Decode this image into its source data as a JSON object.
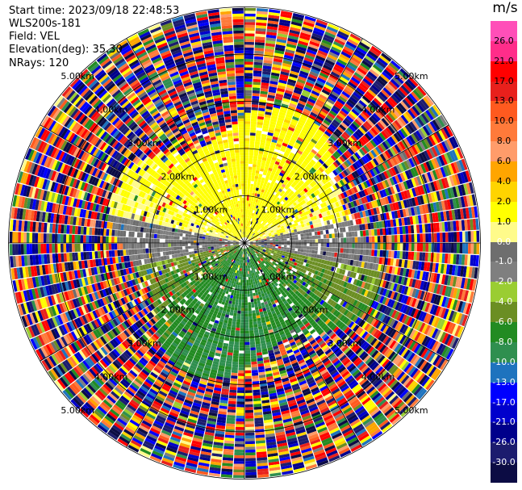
{
  "header": {
    "start_time": "Start time: 2023/09/18 22:48:53",
    "instrument": "WLS200s-181",
    "field": "Field: VEL",
    "elevation": "Elevation(deg): 35.30",
    "nrays": "NRays: 120"
  },
  "colorbar": {
    "unit": "m/s",
    "ticks": [
      "26.0",
      "21.0",
      "17.0",
      "13.0",
      "10.0",
      "8.0",
      "6.0",
      "4.0",
      "2.0",
      "1.0",
      "0.0",
      "-1.0",
      "-2.0",
      "-4.0",
      "-6.0",
      "-8.0",
      "-10.0",
      "-13.0",
      "-17.0",
      "-21.0",
      "-26.0",
      "-30.0"
    ],
    "colors": [
      "#ff4fb8",
      "#ff2d8a",
      "#ff0000",
      "#e8201c",
      "#ff5a1f",
      "#ff7a3a",
      "#ff9c6a",
      "#ffa500",
      "#ffd400",
      "#ffff00",
      "#fffb8a",
      "#6e6e6e",
      "#7f7f7f",
      "#9acd32",
      "#6b8e23",
      "#228b22",
      "#2f8f4f",
      "#1e73be",
      "#0000ff",
      "#0000cc",
      "#00008b",
      "#1c1c6e",
      "#0c0c44"
    ]
  },
  "chart_data": {
    "type": "heatmap",
    "title": "",
    "field": "VEL",
    "units": "m/s",
    "projection": "polar PPI",
    "n_rays": 120,
    "elevation_deg": 35.3,
    "range_max_km": 5.0,
    "range_rings_km": [
      1.0,
      2.0,
      3.0,
      4.0,
      5.0
    ],
    "range_ring_labels": [
      "1.00km",
      "2.00km",
      "3.00km",
      "4.00km",
      "5.00km"
    ],
    "color_scale": {
      "boundaries": [
        -30,
        -26,
        -21,
        -17,
        -13,
        -10,
        -8,
        -6,
        -4,
        -2,
        -1,
        0,
        1,
        2,
        4,
        6,
        8,
        10,
        13,
        17,
        21,
        26,
        30
      ]
    },
    "regions": [
      {
        "description": "northern half near range 0.5-2.5 km",
        "velocity_ms": [
          1.0,
          4.0
        ]
      },
      {
        "description": "southern half near range 0.5-2.5 km",
        "velocity_ms": [
          -8.0,
          -2.0
        ]
      },
      {
        "description": "east-west band near zero",
        "velocity_ms": [
          -1.0,
          1.0
        ]
      },
      {
        "description": "beyond ~3 km (noise)",
        "velocity_ms": [
          -30.0,
          26.0
        ]
      }
    ]
  }
}
